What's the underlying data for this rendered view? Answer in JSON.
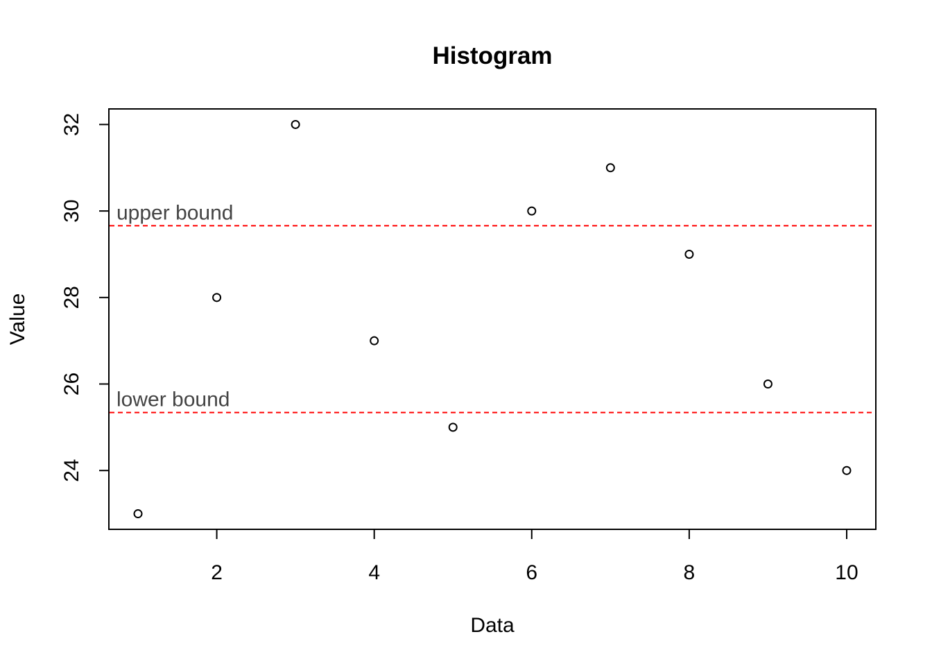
{
  "chart_data": {
    "type": "scatter",
    "title": "Histogram",
    "xlabel": "Data",
    "ylabel": "Value",
    "x": [
      1,
      2,
      3,
      4,
      5,
      6,
      7,
      8,
      9,
      10
    ],
    "y": [
      23,
      28,
      32,
      27,
      25,
      30,
      31,
      29,
      26,
      24
    ],
    "xlim": [
      0.63,
      10.37
    ],
    "ylim": [
      22.64,
      32.36
    ],
    "x_ticks": [
      "2",
      "4",
      "6",
      "8",
      "10"
    ],
    "y_ticks": [
      "24",
      "26",
      "28",
      "30",
      "32"
    ],
    "reference_lines": [
      {
        "label": "upper bound",
        "value": 29.66,
        "color": "#ff0000",
        "style": "dashed"
      },
      {
        "label": "lower bound",
        "value": 25.34,
        "color": "#ff0000",
        "style": "dashed"
      }
    ],
    "marker": "open-circle",
    "grid": false
  }
}
